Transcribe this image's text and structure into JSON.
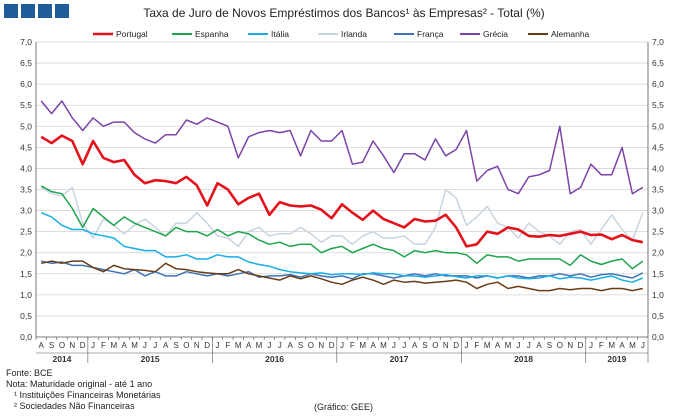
{
  "chart_data": {
    "type": "line",
    "title": "Taxa de Juro de Novos Empréstimos dos Bancos¹ às Empresas² - Total (%)",
    "xlabel": "",
    "ylabel": "",
    "ylim": [
      0,
      7
    ],
    "yticks": [
      "0,0",
      "0,5",
      "1,0",
      "1,5",
      "2,0",
      "2,5",
      "3,0",
      "3,5",
      "4,0",
      "4,5",
      "5,0",
      "5,5",
      "6,0",
      "6,5",
      "7,0"
    ],
    "grid": true,
    "legend": "top",
    "x_months": [
      "A",
      "S",
      "O",
      "N",
      "D",
      "J",
      "F",
      "M",
      "A",
      "M",
      "J",
      "J",
      "A",
      "S",
      "O",
      "N",
      "D",
      "J",
      "F",
      "M",
      "A",
      "M",
      "J",
      "J",
      "A",
      "S",
      "O",
      "N",
      "D",
      "J",
      "F",
      "M",
      "A",
      "M",
      "J",
      "J",
      "A",
      "S",
      "O",
      "N",
      "D",
      "J",
      "F",
      "M",
      "A",
      "M",
      "J",
      "J",
      "A",
      "S",
      "O",
      "N",
      "D",
      "J",
      "F",
      "M",
      "A",
      "M",
      "J"
    ],
    "x_years": [
      {
        "label": "2014",
        "start": 0,
        "end": 4
      },
      {
        "label": "2015",
        "start": 5,
        "end": 16
      },
      {
        "label": "2016",
        "start": 17,
        "end": 28
      },
      {
        "label": "2017",
        "start": 29,
        "end": 40
      },
      {
        "label": "2018",
        "start": 41,
        "end": 52
      },
      {
        "label": "2019",
        "start": 53,
        "end": 58
      }
    ],
    "series": [
      {
        "name": "Portugal",
        "color": "#e3121b",
        "width": 2.6,
        "values": [
          4.75,
          4.6,
          4.78,
          4.65,
          4.1,
          4.65,
          4.25,
          4.15,
          4.2,
          3.85,
          3.65,
          3.72,
          3.7,
          3.65,
          3.8,
          3.6,
          3.12,
          3.65,
          3.5,
          3.15,
          3.3,
          3.4,
          2.9,
          3.2,
          3.12,
          3.1,
          3.12,
          3.02,
          2.82,
          3.15,
          2.95,
          2.78,
          3.0,
          2.8,
          2.7,
          2.6,
          2.8,
          2.74,
          2.76,
          2.9,
          2.6,
          2.15,
          2.2,
          2.5,
          2.45,
          2.6,
          2.55,
          2.4,
          2.38,
          2.42,
          2.4,
          2.45,
          2.5,
          2.42,
          2.43,
          2.32,
          2.42,
          2.3,
          2.25
        ]
      },
      {
        "name": "Espanha",
        "color": "#1ea44e",
        "width": 1.5,
        "values": [
          3.58,
          3.45,
          3.4,
          3.05,
          2.6,
          3.05,
          2.85,
          2.65,
          2.85,
          2.7,
          2.6,
          2.5,
          2.4,
          2.6,
          2.5,
          2.5,
          2.4,
          2.55,
          2.4,
          2.5,
          2.45,
          2.3,
          2.2,
          2.25,
          2.15,
          2.2,
          2.2,
          2.0,
          2.1,
          2.15,
          2.0,
          2.1,
          2.2,
          2.1,
          2.05,
          1.9,
          2.05,
          2.0,
          2.05,
          2.0,
          2.0,
          1.95,
          1.75,
          1.95,
          1.9,
          1.9,
          1.8,
          1.85,
          1.85,
          1.85,
          1.85,
          1.7,
          1.95,
          1.8,
          1.72,
          1.8,
          1.85,
          1.62,
          1.8
        ]
      },
      {
        "name": "Itália",
        "color": "#19aee6",
        "width": 1.5,
        "values": [
          2.95,
          2.85,
          2.65,
          2.55,
          2.55,
          2.45,
          2.4,
          2.35,
          2.15,
          2.1,
          2.05,
          2.05,
          1.9,
          1.9,
          1.95,
          1.85,
          1.85,
          1.95,
          1.9,
          1.9,
          1.78,
          1.72,
          1.68,
          1.6,
          1.55,
          1.52,
          1.5,
          1.52,
          1.48,
          1.5,
          1.5,
          1.48,
          1.52,
          1.5,
          1.5,
          1.45,
          1.45,
          1.42,
          1.45,
          1.48,
          1.43,
          1.4,
          1.45,
          1.45,
          1.4,
          1.45,
          1.4,
          1.38,
          1.4,
          1.45,
          1.38,
          1.42,
          1.4,
          1.35,
          1.4,
          1.45,
          1.35,
          1.3,
          1.4
        ]
      },
      {
        "name": "Irlanda",
        "color": "#c8d4e0",
        "width": 1.5,
        "values": [
          3.55,
          3.4,
          3.35,
          3.55,
          2.7,
          2.35,
          2.8,
          2.65,
          2.45,
          2.65,
          2.8,
          2.6,
          2.4,
          2.7,
          2.7,
          2.95,
          2.7,
          2.4,
          2.35,
          2.15,
          2.5,
          2.6,
          2.4,
          2.45,
          2.45,
          2.6,
          2.45,
          2.25,
          2.4,
          2.4,
          2.2,
          2.4,
          2.5,
          2.35,
          2.35,
          2.4,
          2.2,
          2.2,
          2.6,
          3.5,
          3.3,
          2.65,
          2.85,
          3.1,
          2.7,
          2.6,
          2.35,
          2.7,
          2.5,
          2.4,
          2.2,
          2.5,
          2.55,
          2.2,
          2.55,
          2.9,
          2.55,
          2.3,
          2.95
        ]
      },
      {
        "name": "França",
        "color": "#3e73b5",
        "width": 1.5,
        "values": [
          1.8,
          1.75,
          1.78,
          1.7,
          1.7,
          1.65,
          1.6,
          1.55,
          1.5,
          1.6,
          1.45,
          1.55,
          1.45,
          1.45,
          1.55,
          1.5,
          1.45,
          1.5,
          1.45,
          1.5,
          1.55,
          1.42,
          1.45,
          1.45,
          1.48,
          1.42,
          1.5,
          1.45,
          1.42,
          1.45,
          1.38,
          1.5,
          1.5,
          1.45,
          1.4,
          1.45,
          1.5,
          1.45,
          1.5,
          1.45,
          1.45,
          1.45,
          1.4,
          1.45,
          1.4,
          1.45,
          1.45,
          1.4,
          1.45,
          1.45,
          1.5,
          1.45,
          1.5,
          1.42,
          1.48,
          1.5,
          1.45,
          1.4,
          1.52
        ]
      },
      {
        "name": "Grécia",
        "color": "#7a44a8",
        "width": 1.5,
        "values": [
          5.6,
          5.3,
          5.6,
          5.2,
          4.9,
          5.2,
          5.0,
          5.1,
          5.1,
          4.85,
          4.7,
          4.6,
          4.8,
          4.8,
          5.15,
          5.05,
          5.2,
          5.1,
          5.0,
          4.25,
          4.75,
          4.85,
          4.9,
          4.85,
          4.9,
          4.3,
          4.9,
          4.65,
          4.65,
          4.9,
          4.1,
          4.15,
          4.65,
          4.3,
          3.9,
          4.35,
          4.35,
          4.2,
          4.7,
          4.3,
          4.45,
          4.9,
          3.7,
          3.95,
          4.05,
          3.5,
          3.4,
          3.8,
          3.85,
          3.95,
          5.0,
          3.4,
          3.55,
          4.1,
          3.85,
          3.85,
          4.5,
          3.4,
          3.55
        ]
      },
      {
        "name": "Alemanha",
        "color": "#6b3d16",
        "width": 1.5,
        "values": [
          1.75,
          1.8,
          1.75,
          1.8,
          1.8,
          1.65,
          1.55,
          1.7,
          1.62,
          1.6,
          1.58,
          1.55,
          1.75,
          1.62,
          1.6,
          1.55,
          1.52,
          1.5,
          1.5,
          1.6,
          1.5,
          1.45,
          1.4,
          1.35,
          1.45,
          1.38,
          1.45,
          1.38,
          1.3,
          1.25,
          1.35,
          1.42,
          1.35,
          1.25,
          1.35,
          1.3,
          1.32,
          1.28,
          1.3,
          1.32,
          1.35,
          1.3,
          1.15,
          1.25,
          1.3,
          1.15,
          1.2,
          1.15,
          1.1,
          1.1,
          1.15,
          1.12,
          1.15,
          1.15,
          1.1,
          1.15,
          1.15,
          1.1,
          1.15
        ]
      }
    ]
  },
  "notes": {
    "source": "Fonte: BCE",
    "note": "Nota: Maturidade original - até 1 ano",
    "footnote1": "¹ Instituições Financeiras Monetárias",
    "footnote2": "² Sociedades Não Financeiras",
    "credit": "(Gráfico: GEE)"
  },
  "colors": {
    "logo": "#1f5c99",
    "grid": "#d4d4d4",
    "axis": "#555555"
  }
}
